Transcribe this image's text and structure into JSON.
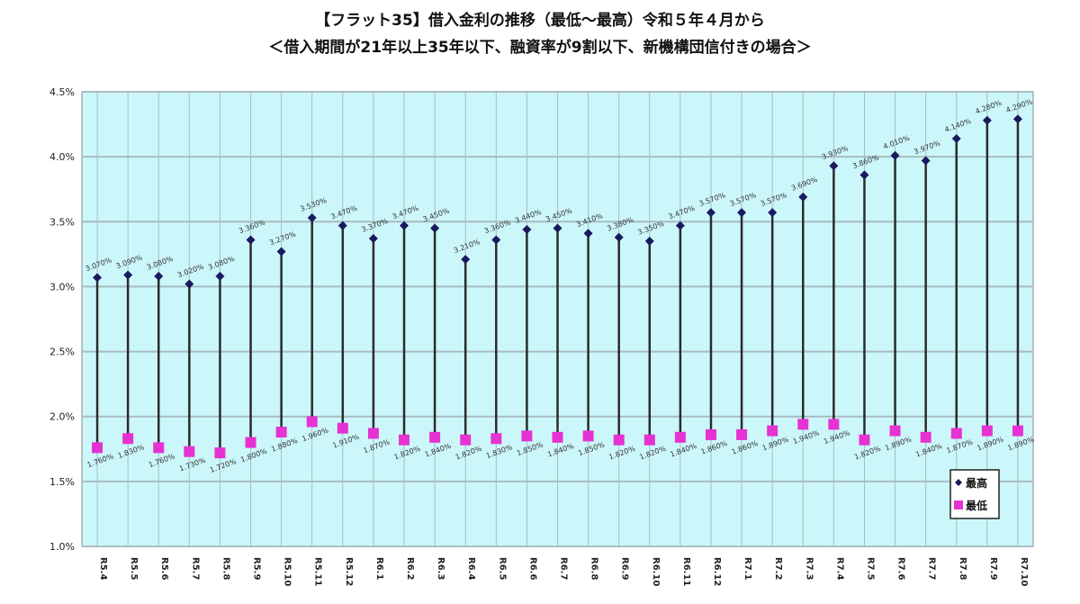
{
  "chart_data": {
    "type": "line",
    "style": "high-low lines with markers",
    "title": "【フラット35】借入金利の推移（最低～最高）令和５年４月から",
    "subtitle": "＜借入期間が21年以上35年以下、融資率が9割以下、新機構団信付きの場合＞",
    "xlabel": "",
    "ylabel": "",
    "ylim": [
      1.0,
      4.5
    ],
    "yticks": [
      "1.0%",
      "1.5%",
      "2.0%",
      "2.5%",
      "3.0%",
      "3.5%",
      "4.0%",
      "4.5%"
    ],
    "grid": true,
    "legend_position": "bottom-right",
    "categories": [
      "R5.4",
      "R5.5",
      "R5.6",
      "R5.7",
      "R5.8",
      "R5.9",
      "R5.10",
      "R5.11",
      "R5.12",
      "R6.1",
      "R6.2",
      "R6.3",
      "R6.4",
      "R6.5",
      "R6.6",
      "R6.7",
      "R6.8",
      "R6.9",
      "R6.10",
      "R6.11",
      "R6.12",
      "R7.1",
      "R7.2",
      "R7.3",
      "R7.4",
      "R7.5",
      "R7.6",
      "R7.7",
      "R7.8",
      "R7.9",
      "R7.10"
    ],
    "series": [
      {
        "name": "最高",
        "color": "#1a1a5e",
        "marker": "diamond",
        "values": [
          3.07,
          3.09,
          3.08,
          3.02,
          3.08,
          3.36,
          3.27,
          3.53,
          3.47,
          3.37,
          3.47,
          3.45,
          3.21,
          3.36,
          3.44,
          3.45,
          3.41,
          3.38,
          3.35,
          3.47,
          3.57,
          3.57,
          3.57,
          3.69,
          3.93,
          3.86,
          4.01,
          3.97,
          4.14,
          4.28,
          4.29
        ]
      },
      {
        "name": "最低",
        "color": "#e632d2",
        "marker": "square",
        "values": [
          1.76,
          1.83,
          1.76,
          1.73,
          1.72,
          1.8,
          1.88,
          1.96,
          1.91,
          1.87,
          1.82,
          1.84,
          1.82,
          1.83,
          1.85,
          1.84,
          1.85,
          1.82,
          1.82,
          1.84,
          1.86,
          1.86,
          1.89,
          1.94,
          1.94,
          1.82,
          1.89,
          1.84,
          1.87,
          1.89,
          1.89
        ]
      }
    ],
    "colors": {
      "plot_background": "#ccf7fa",
      "gridline": "#a8bcc0",
      "stem": "#2b2b2b"
    }
  }
}
